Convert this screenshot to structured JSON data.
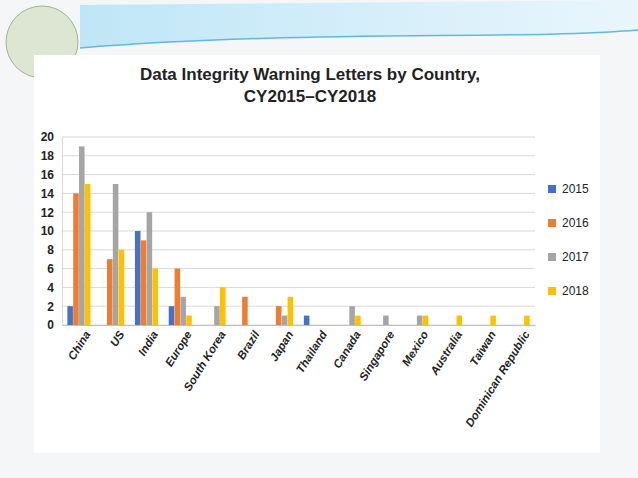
{
  "chart_data": {
    "type": "bar",
    "title": "Data Integrity Warning Letters by Country, CY2015–CY2018",
    "categories": [
      "China",
      "US",
      "India",
      "Europe",
      "South Korea",
      "Brazil",
      "Japan",
      "Thailand",
      "Canada",
      "Singapore",
      "Mexico",
      "Australia",
      "Taiwan",
      "Dominican Republic"
    ],
    "series": [
      {
        "name": "2015",
        "color": "#4472c4",
        "values": [
          2,
          0,
          10,
          2,
          0,
          0,
          0,
          1,
          0,
          0,
          0,
          0,
          0,
          0
        ]
      },
      {
        "name": "2016",
        "color": "#ed7d31",
        "values": [
          14,
          7,
          9,
          6,
          0,
          3,
          2,
          0,
          0,
          0,
          0,
          0,
          0,
          0
        ]
      },
      {
        "name": "2017",
        "color": "#a5a5a5",
        "values": [
          19,
          15,
          12,
          3,
          2,
          0,
          1,
          0,
          2,
          1,
          1,
          0,
          0,
          0
        ]
      },
      {
        "name": "2018",
        "color": "#ffc000",
        "values": [
          15,
          8,
          6,
          1,
          4,
          0,
          3,
          0,
          1,
          0,
          1,
          1,
          1,
          1
        ]
      }
    ],
    "ylim": [
      0,
      20
    ],
    "yticks": [
      0,
      2,
      4,
      6,
      8,
      10,
      12,
      14,
      16,
      18,
      20
    ],
    "grid": true,
    "legend": "right"
  }
}
